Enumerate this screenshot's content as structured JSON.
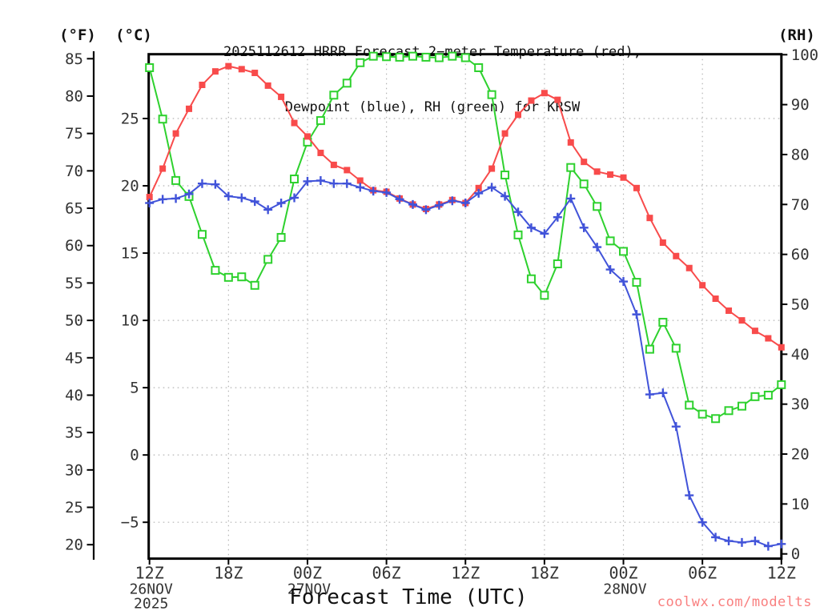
{
  "title": {
    "line1": "2025112612 HRRR Forecast 2−meter Temperature (red),",
    "line2": "Dewpoint (blue), RH (green) for KRSW"
  },
  "watermark": "coolwx.com/modelts",
  "axes": {
    "left_f_label": "(°F)",
    "left_c_label": "(°C)",
    "right_label": "(RH)",
    "x_title": "Forecast Time (UTC)",
    "f_ticks": [
      85,
      80,
      75,
      70,
      65,
      60,
      55,
      50,
      45,
      40,
      35,
      30,
      25,
      20
    ],
    "c_ticks": [
      25,
      20,
      15,
      10,
      5,
      0,
      -5
    ],
    "rh_ticks": [
      100,
      90,
      80,
      70,
      60,
      50,
      40,
      30,
      20,
      10,
      0
    ],
    "x_ticks": [
      {
        "hour": 0,
        "label": "12Z"
      },
      {
        "hour": 6,
        "label": "18Z"
      },
      {
        "hour": 12,
        "label": "00Z"
      },
      {
        "hour": 18,
        "label": "06Z"
      },
      {
        "hour": 24,
        "label": "12Z"
      },
      {
        "hour": 30,
        "label": "18Z"
      },
      {
        "hour": 36,
        "label": "00Z"
      },
      {
        "hour": 42,
        "label": "06Z"
      },
      {
        "hour": 48,
        "label": "12Z"
      }
    ],
    "x_dates": [
      {
        "hour": 0,
        "lines": [
          "26NOV",
          "2025"
        ]
      },
      {
        "hour": 12,
        "lines": [
          "27NOV"
        ]
      },
      {
        "hour": 36,
        "lines": [
          "28NOV"
        ]
      }
    ]
  },
  "colors": {
    "temperature": "#f84b4b",
    "dewpoint": "#4153d9",
    "rh": "#2ed12e",
    "frame": "#000000",
    "grid": "#b4b4b4",
    "tick_text": "#333333",
    "watermark": "#f98080"
  },
  "chart_data": {
    "type": "line",
    "x_unit": "hours from 12Z 26NOV2025",
    "x_hours_range": [
      0,
      48
    ],
    "x_step_hours": 1,
    "temp_axis_f_ticks_range": [
      20,
      85
    ],
    "temp_axis_c_ticks_range": [
      -5,
      25
    ],
    "rh_axis_range": [
      0,
      100
    ],
    "grid": "dotted at 6-hour verticals and 5°C horizontals",
    "legend": "named in title: Temperature (red), Dewpoint (blue), RH (green)",
    "series": [
      {
        "name": "2-meter Temperature",
        "color_key": "temperature",
        "axis": "F",
        "marker": "filled-square",
        "values_f": [
          66.5,
          70.3,
          75.0,
          78.3,
          81.5,
          83.3,
          84.0,
          83.6,
          83.1,
          81.4,
          79.9,
          76.4,
          74.6,
          72.4,
          70.8,
          70.1,
          68.7,
          67.4,
          67.2,
          66.3,
          65.5,
          64.9,
          65.5,
          66.1,
          65.7,
          67.7,
          70.3,
          75.0,
          77.5,
          79.4,
          80.4,
          79.5,
          73.8,
          71.2,
          69.9,
          69.5,
          69.1,
          67.7,
          63.7,
          60.4,
          58.6,
          57.0,
          54.7,
          52.9,
          51.3,
          50.0,
          48.6,
          47.6,
          46.4
        ]
      },
      {
        "name": "2-meter Dewpoint",
        "color_key": "dewpoint",
        "axis": "F",
        "marker": "plus",
        "values_f": [
          65.7,
          66.2,
          66.3,
          66.9,
          68.3,
          68.2,
          66.6,
          66.4,
          65.9,
          64.8,
          65.7,
          66.4,
          68.6,
          68.7,
          68.3,
          68.3,
          67.8,
          67.3,
          67.1,
          66.2,
          65.5,
          64.8,
          65.4,
          66.0,
          65.7,
          67.0,
          67.8,
          66.6,
          64.5,
          62.4,
          61.6,
          63.8,
          66.3,
          62.4,
          59.8,
          56.8,
          55.2,
          50.8,
          40.1,
          40.3,
          35.8,
          26.6,
          23.0,
          21.0,
          20.5,
          20.3,
          20.5,
          19.8,
          20.1
        ]
      },
      {
        "name": "Relative Humidity",
        "color_key": "rh",
        "axis": "RH",
        "marker": "open-square",
        "values_pct": [
          97.4,
          87.1,
          74.8,
          71.6,
          64.0,
          56.8,
          55.4,
          55.5,
          53.8,
          59.0,
          63.4,
          75.1,
          82.5,
          86.8,
          91.9,
          94.3,
          98.4,
          99.7,
          99.6,
          99.5,
          99.7,
          99.5,
          99.4,
          99.7,
          99.4,
          97.4,
          92.0,
          75.9,
          63.9,
          55.1,
          51.8,
          58.1,
          77.4,
          74.1,
          69.6,
          62.7,
          60.6,
          54.4,
          41.0,
          46.4,
          41.2,
          29.8,
          28.0,
          27.1,
          28.7,
          29.6,
          31.5,
          31.8,
          33.9
        ]
      }
    ]
  }
}
